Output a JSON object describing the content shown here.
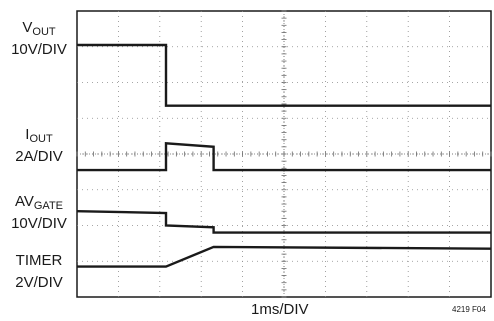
{
  "chart_data": {
    "type": "line",
    "title": "",
    "xlabel": "1ms/DIV",
    "figure_id": "4219 F04",
    "grid": true,
    "x_divisions": 10,
    "y_divisions": 8,
    "xlim_div": [
      0,
      10
    ],
    "ylim_div": [
      0,
      8
    ],
    "trace_color": "#1a1a1a",
    "series": [
      {
        "name_main": "V",
        "name_sub": "OUT",
        "scale": "10V/DIV",
        "x": [
          0,
          2.15,
          2.15,
          10
        ],
        "y": [
          7.05,
          7.05,
          5.35,
          5.35
        ]
      },
      {
        "name_main": "I",
        "name_sub": "OUT",
        "scale": "2A/DIV",
        "x": [
          0,
          2.15,
          2.15,
          3.3,
          3.3,
          10
        ],
        "y": [
          3.55,
          3.55,
          4.3,
          4.2,
          3.55,
          3.55
        ]
      },
      {
        "name_main": "AV",
        "name_sub": "GATE",
        "scale": "10V/DIV",
        "x": [
          0,
          2.15,
          2.15,
          3.3,
          3.3,
          10
        ],
        "y": [
          2.4,
          2.35,
          2.0,
          1.95,
          1.8,
          1.8
        ]
      },
      {
        "name_main": "TIMER",
        "name_sub": "",
        "scale": "2V/DIV",
        "x": [
          0,
          2.15,
          3.3,
          10
        ],
        "y": [
          0.85,
          0.85,
          1.4,
          1.35
        ]
      }
    ]
  }
}
